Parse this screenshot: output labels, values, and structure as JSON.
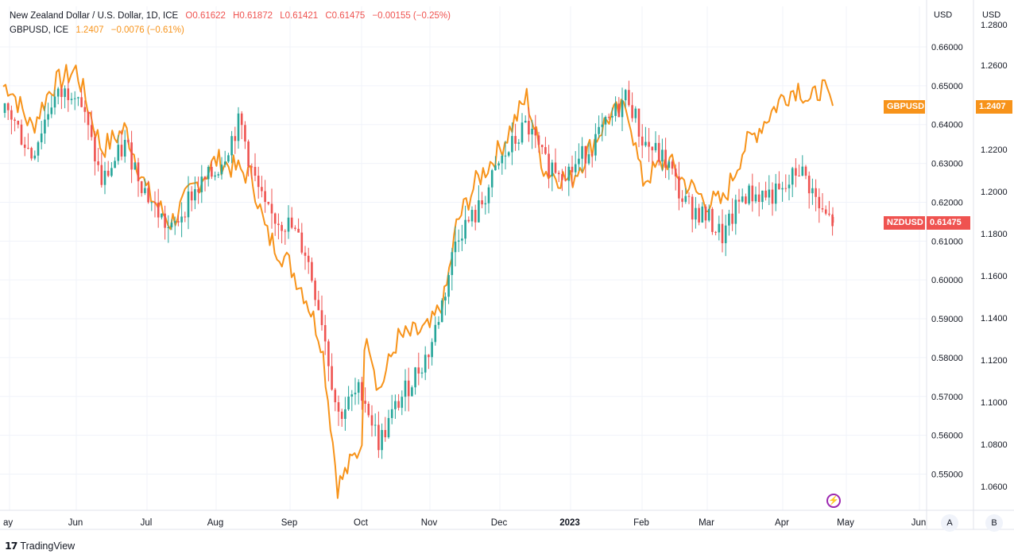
{
  "legend": {
    "nzd": {
      "title": "New Zealand Dollar / U.S. Dollar, 1D, ICE",
      "open": "O0.61622",
      "high": "H0.61872",
      "low": "L0.61421",
      "close": "C0.61475",
      "change": "−0.00155 (−0.25%)"
    },
    "gbp": {
      "title": "GBPUSD, ICE",
      "value": "1.2407",
      "change": "−0.0076 (−0.61%)"
    }
  },
  "axes": {
    "left_currency": "USD",
    "right_currency": "USD"
  },
  "tags": {
    "gbp_label": "GBPUSD",
    "gbp_value": "1.2407",
    "nzd_label": "NZDUSD",
    "nzd_value": "0.61475"
  },
  "buttons": {
    "a": "A",
    "b": "B"
  },
  "brand": {
    "logo": "17",
    "name": "TradingView"
  },
  "colors": {
    "up": "#26a69a",
    "down": "#ef5350",
    "gbp_line": "#f7931a",
    "grid": "#f0f3fa",
    "text": "#131722"
  },
  "chart_data": {
    "type": "line",
    "title": "New Zealand Dollar / U.S. Dollar, 1D, ICE",
    "x": [
      "May",
      "Jun",
      "Jul",
      "Aug",
      "Sep",
      "Oct",
      "Nov",
      "Dec",
      "2023",
      "Feb",
      "Mar",
      "Apr",
      "May",
      "Jun"
    ],
    "series": [
      {
        "name": "NZDUSD",
        "style": "candlestick",
        "axis": "left",
        "ylim": [
          0.543,
          0.667
        ],
        "ticks": [
          "0.66000",
          "0.65000",
          "0.64000",
          "0.63000",
          "0.62000",
          "0.61000",
          "0.60000",
          "0.59000",
          "0.58000",
          "0.57000",
          "0.56000",
          "0.55000"
        ],
        "anchors": [
          [
            "May",
            0.643
          ],
          [
            "May 15",
            0.632
          ],
          [
            "May 22",
            0.646
          ],
          [
            "Jun",
            0.65
          ],
          [
            "Jun 15",
            0.625
          ],
          [
            "Jun 22",
            0.635
          ],
          [
            "Jul",
            0.622
          ],
          [
            "Jul 15",
            0.612
          ],
          [
            "Jul 22",
            0.622
          ],
          [
            "Aug",
            0.628
          ],
          [
            "Aug 8",
            0.641
          ],
          [
            "Aug 15",
            0.628
          ],
          [
            "Aug 22",
            0.617
          ],
          [
            "Sep",
            0.614
          ],
          [
            "Sep 15",
            0.607
          ],
          [
            "Sep 22",
            0.59
          ],
          [
            "Sep 28",
            0.565
          ],
          [
            "Oct",
            0.572
          ],
          [
            "Oct 12",
            0.558
          ],
          [
            "Oct 22",
            0.568
          ],
          [
            "Nov",
            0.582
          ],
          [
            "Nov 8",
            0.597
          ],
          [
            "Nov 15",
            0.612
          ],
          [
            "Nov 22",
            0.617
          ],
          [
            "Dec",
            0.63
          ],
          [
            "Dec 15",
            0.64
          ],
          [
            "Dec 22",
            0.63
          ],
          [
            "2023",
            0.628
          ],
          [
            "Jan 15",
            0.64
          ],
          [
            "Jan 22",
            0.648
          ],
          [
            "Feb",
            0.636
          ],
          [
            "Feb 15",
            0.63
          ],
          [
            "Feb 22",
            0.62
          ],
          [
            "Mar",
            0.616
          ],
          [
            "Mar 8",
            0.611
          ],
          [
            "Mar 15",
            0.622
          ],
          [
            "Apr",
            0.622
          ],
          [
            "Apr 8",
            0.629
          ],
          [
            "Apr 15",
            0.624
          ],
          [
            "Apr 22",
            0.617
          ],
          [
            "Apr 28",
            0.615
          ]
        ],
        "last": 0.61475
      },
      {
        "name": "GBPUSD",
        "style": "line",
        "axis": "right",
        "ylim": [
          1.0465,
          1.2805
        ],
        "ticks": [
          "1.2800",
          "1.2600",
          "1.2400",
          "1.2200",
          "1.2000",
          "1.1800",
          "1.1600",
          "1.1400",
          "1.1200",
          "1.1000",
          "1.0800",
          "1.0600"
        ],
        "anchors": [
          [
            "May",
            1.25
          ],
          [
            "May 15",
            1.23
          ],
          [
            "May 22",
            1.25
          ],
          [
            "Jun",
            1.258
          ],
          [
            "Jun 15",
            1.22
          ],
          [
            "Jun 22",
            1.23
          ],
          [
            "Jul",
            1.2
          ],
          [
            "Jul 15",
            1.185
          ],
          [
            "Jul 22",
            1.2
          ],
          [
            "Aug",
            1.215
          ],
          [
            "Aug 8",
            1.21
          ],
          [
            "Aug 15",
            1.207
          ],
          [
            "Aug 22",
            1.18
          ],
          [
            "Sep",
            1.165
          ],
          [
            "Sep 15",
            1.15
          ],
          [
            "Sep 22",
            1.128
          ],
          [
            "Sep 28",
            1.06
          ],
          [
            "Oct",
            1.08
          ],
          [
            "Oct 5",
            1.138
          ],
          [
            "Oct 12",
            1.105
          ],
          [
            "Oct 22",
            1.13
          ],
          [
            "Nov",
            1.135
          ],
          [
            "Nov 8",
            1.15
          ],
          [
            "Nov 15",
            1.185
          ],
          [
            "Nov 22",
            1.205
          ],
          [
            "Dec",
            1.22
          ],
          [
            "Dec 15",
            1.245
          ],
          [
            "Dec 22",
            1.21
          ],
          [
            "2023",
            1.205
          ],
          [
            "Jan 15",
            1.235
          ],
          [
            "Jan 22",
            1.24
          ],
          [
            "Feb",
            1.205
          ],
          [
            "Feb 15",
            1.215
          ],
          [
            "Feb 22",
            1.205
          ],
          [
            "Mar",
            1.195
          ],
          [
            "Mar 8",
            1.195
          ],
          [
            "Mar 15",
            1.22
          ],
          [
            "Apr",
            1.245
          ],
          [
            "Apr 8",
            1.25
          ],
          [
            "Apr 15",
            1.242
          ],
          [
            "Apr 22",
            1.25
          ],
          [
            "Apr 28",
            1.2407
          ]
        ],
        "last": 1.2407
      }
    ]
  }
}
